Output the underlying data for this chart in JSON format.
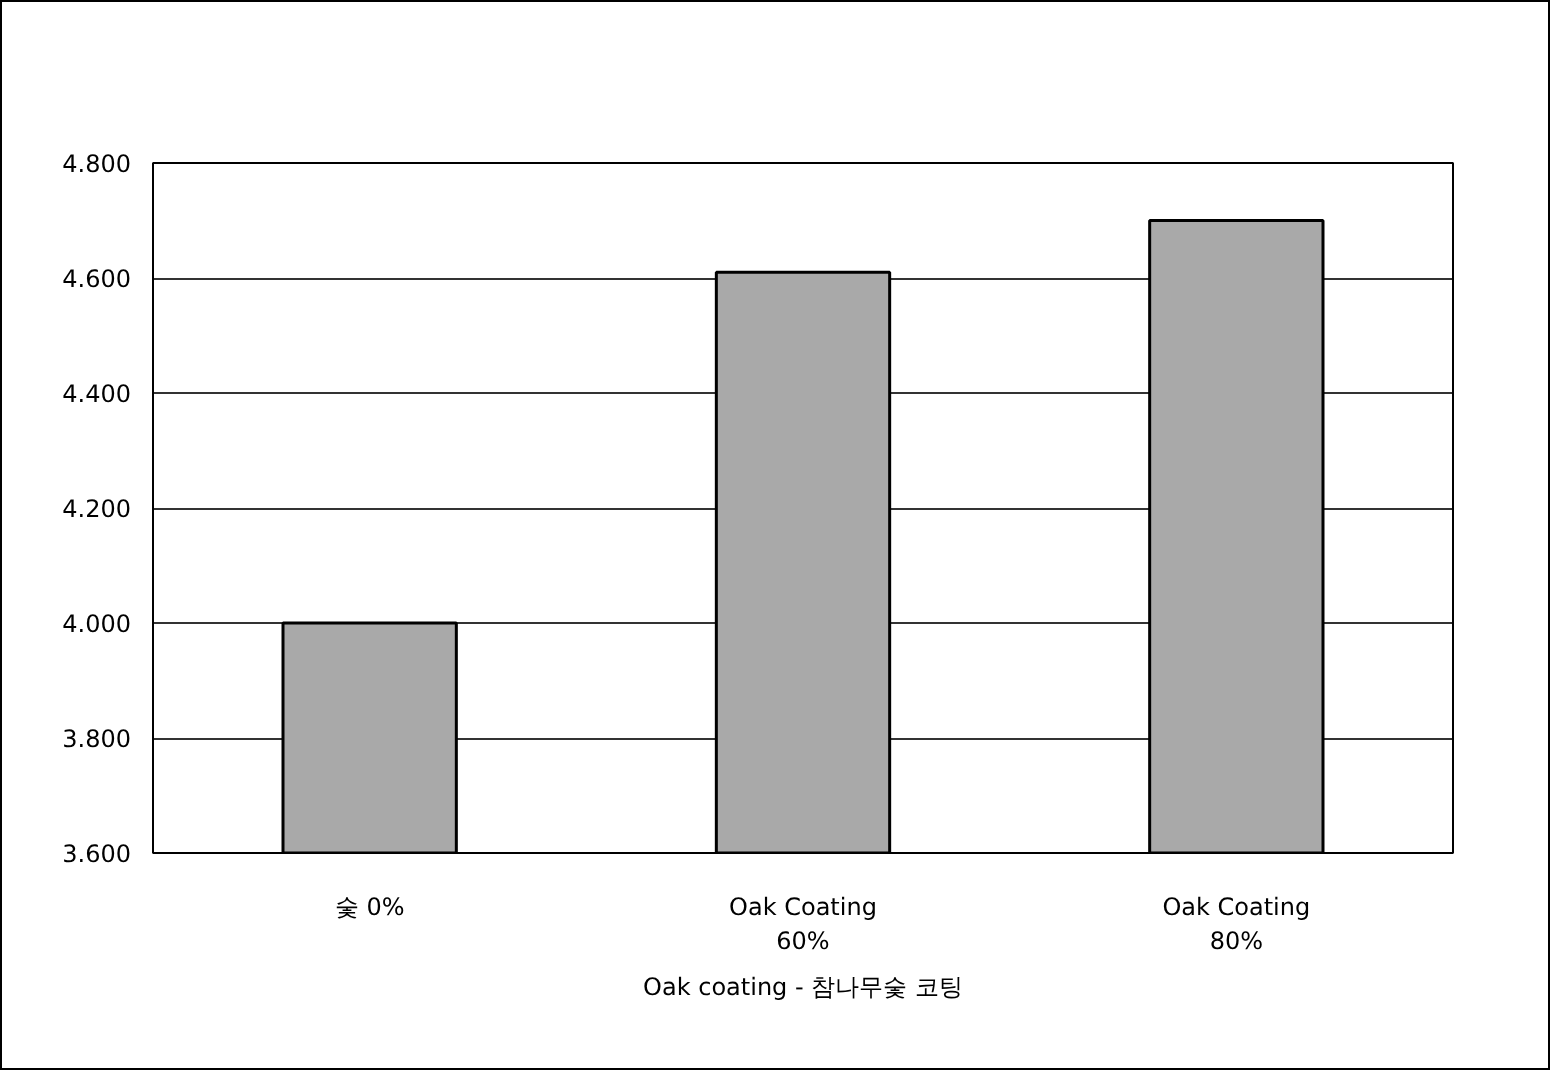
{
  "chart_data": {
    "type": "bar",
    "categories": [
      "숯 0%",
      "Oak Coating\n60%",
      "Oak Coating\n80%"
    ],
    "values": [
      4.0,
      4.61,
      4.7
    ],
    "color": "#a9a9a9",
    "xlabel": "Oak coating - 참나무숯 코팅",
    "ylim": [
      3.6,
      4.8
    ],
    "yticks": [
      {
        "value": 3.6,
        "label": "3.600"
      },
      {
        "value": 3.8,
        "label": "3.800"
      },
      {
        "value": 4.0,
        "label": "4.000"
      },
      {
        "value": 4.2,
        "label": "4.200"
      },
      {
        "value": 4.4,
        "label": "4.400"
      },
      {
        "value": 4.6,
        "label": "4.600"
      },
      {
        "value": 4.8,
        "label": "4.800"
      }
    ],
    "grid": "y"
  }
}
